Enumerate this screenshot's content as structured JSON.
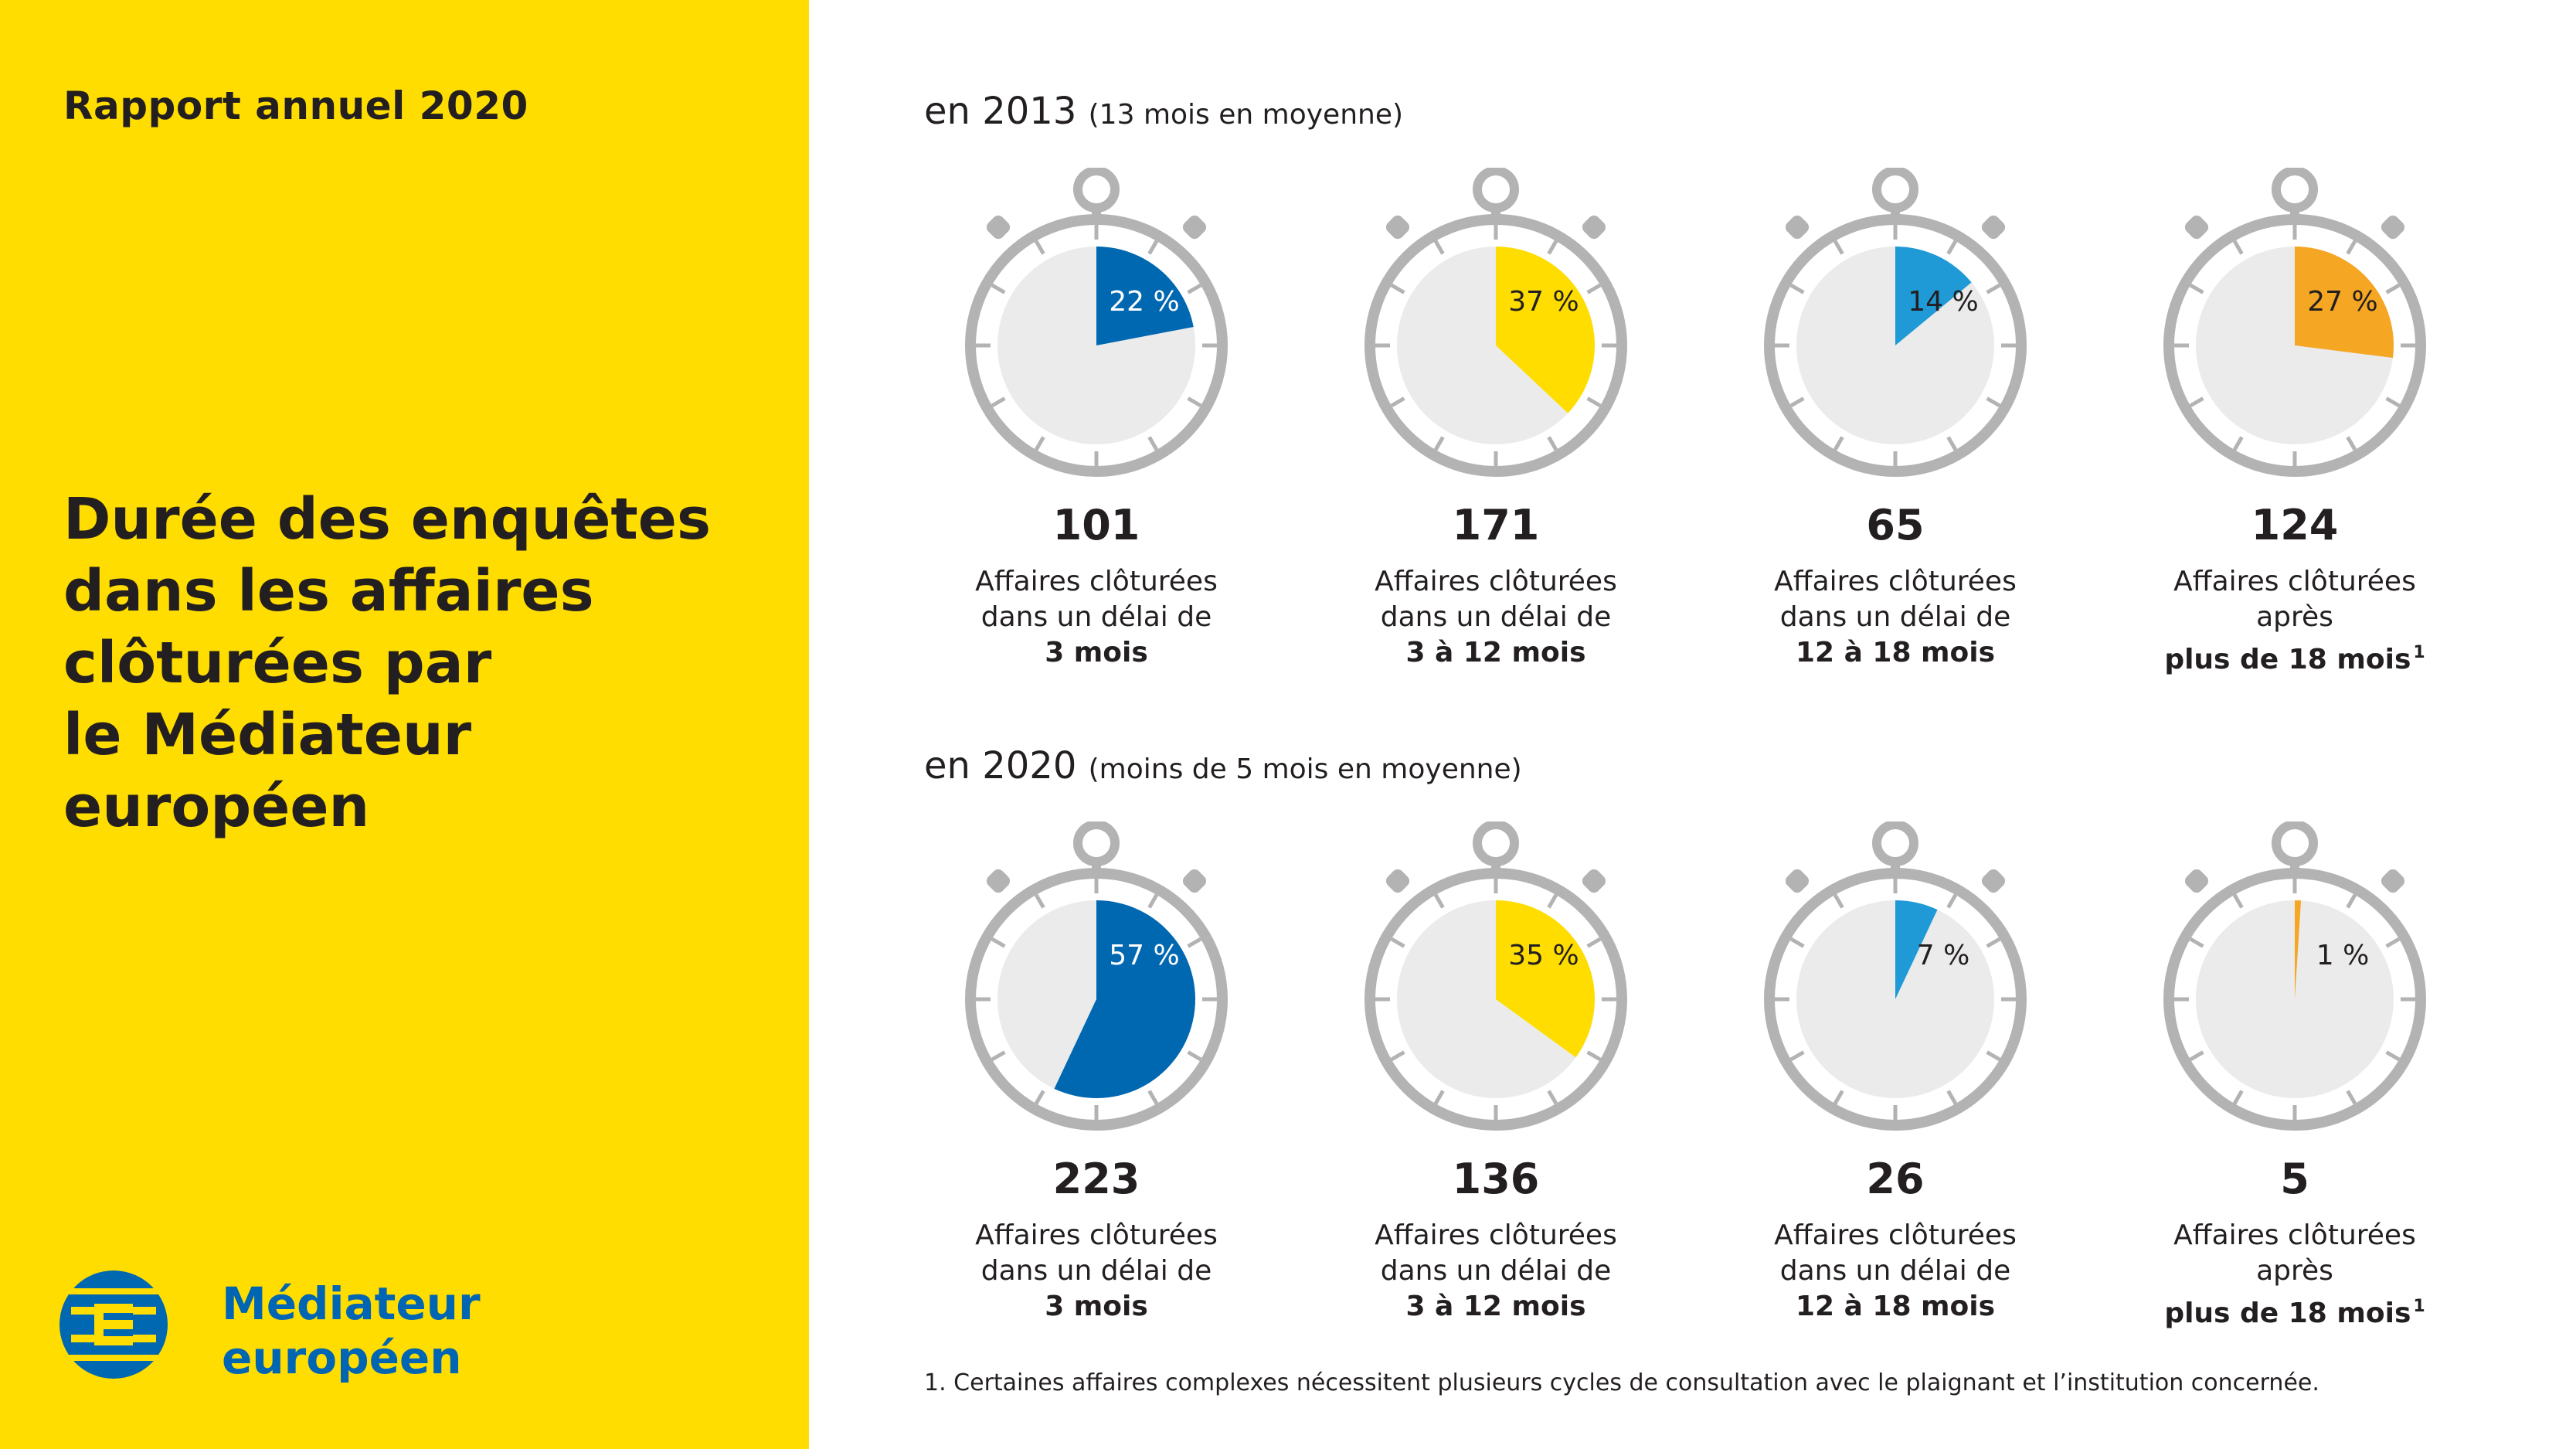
{
  "sidebar": {
    "report_title": "Rapport annuel 2020",
    "page_title": "Durée des enquêtes\ndans les affaires\nclôturées par\nle Médiateur européen",
    "logo_text": "Médiateur\neuropéen"
  },
  "sections": [
    {
      "year": "en 2013",
      "note": "(13 mois en moyenne)"
    },
    {
      "year": "en 2020",
      "note": "(moins de 5 mois en moyenne)"
    }
  ],
  "chart_data": [
    {
      "type": "pie",
      "title": "en 2013 (13 mois en moyenne)",
      "categories": [
        "3 mois",
        "3 à 12 mois",
        "12 à 18 mois",
        "plus de 18 mois"
      ],
      "series": [
        {
          "name": "percent",
          "values": [
            22,
            37,
            14,
            27
          ]
        },
        {
          "name": "cases",
          "values": [
            101,
            171,
            65,
            124
          ]
        }
      ],
      "colors": [
        "#0067b1",
        "#ffdd00",
        "#1f9ad6",
        "#f5a623"
      ],
      "items": [
        {
          "pct": 22,
          "pct_label": "22 %",
          "count": "101",
          "line1": "Affaires clôturées",
          "line2": "dans un délai de",
          "line3": "3 mois",
          "footnote_ref": "",
          "color": "#0067b1",
          "label_color": "#ffffff"
        },
        {
          "pct": 37,
          "pct_label": "37 %",
          "count": "171",
          "line1": "Affaires clôturées",
          "line2": "dans un délai de",
          "line3": "3 à 12 mois",
          "footnote_ref": "",
          "color": "#ffdd00",
          "label_color": "#231f20"
        },
        {
          "pct": 14,
          "pct_label": "14 %",
          "count": "65",
          "line1": "Affaires clôturées",
          "line2": "dans un délai de",
          "line3": "12 à 18 mois",
          "footnote_ref": "",
          "color": "#1f9ad6",
          "label_color": "#231f20"
        },
        {
          "pct": 27,
          "pct_label": "27 %",
          "count": "124",
          "line1": "Affaires clôturées",
          "line2": "après",
          "line3": "plus de 18 mois",
          "footnote_ref": "1",
          "color": "#f5a623",
          "label_color": "#231f20"
        }
      ]
    },
    {
      "type": "pie",
      "title": "en 2020 (moins de 5 mois en moyenne)",
      "categories": [
        "3 mois",
        "3 à 12 mois",
        "12 à 18 mois",
        "plus de 18 mois"
      ],
      "series": [
        {
          "name": "percent",
          "values": [
            57,
            35,
            7,
            1
          ]
        },
        {
          "name": "cases",
          "values": [
            223,
            136,
            26,
            5
          ]
        }
      ],
      "colors": [
        "#0067b1",
        "#ffdd00",
        "#1f9ad6",
        "#f5a623"
      ],
      "items": [
        {
          "pct": 57,
          "pct_label": "57 %",
          "count": "223",
          "line1": "Affaires clôturées",
          "line2": "dans un délai de",
          "line3": "3 mois",
          "footnote_ref": "",
          "color": "#0067b1",
          "label_color": "#ffffff"
        },
        {
          "pct": 35,
          "pct_label": "35 %",
          "count": "136",
          "line1": "Affaires clôturées",
          "line2": "dans un délai de",
          "line3": "3 à 12 mois",
          "footnote_ref": "",
          "color": "#ffdd00",
          "label_color": "#231f20"
        },
        {
          "pct": 7,
          "pct_label": "7 %",
          "count": "26",
          "line1": "Affaires clôturées",
          "line2": "dans un délai de",
          "line3": "12 à 18 mois",
          "footnote_ref": "",
          "color": "#1f9ad6",
          "label_color": "#231f20"
        },
        {
          "pct": 1,
          "pct_label": "1 %",
          "count": "5",
          "line1": "Affaires clôturées",
          "line2": "après",
          "line3": "plus de 18 mois",
          "footnote_ref": "1",
          "color": "#f5a623",
          "label_color": "#231f20"
        }
      ]
    }
  ],
  "footnote": "1. Certaines affaires complexes nécessitent plusieurs cycles de consultation avec le plaignant et l’institution concernée."
}
